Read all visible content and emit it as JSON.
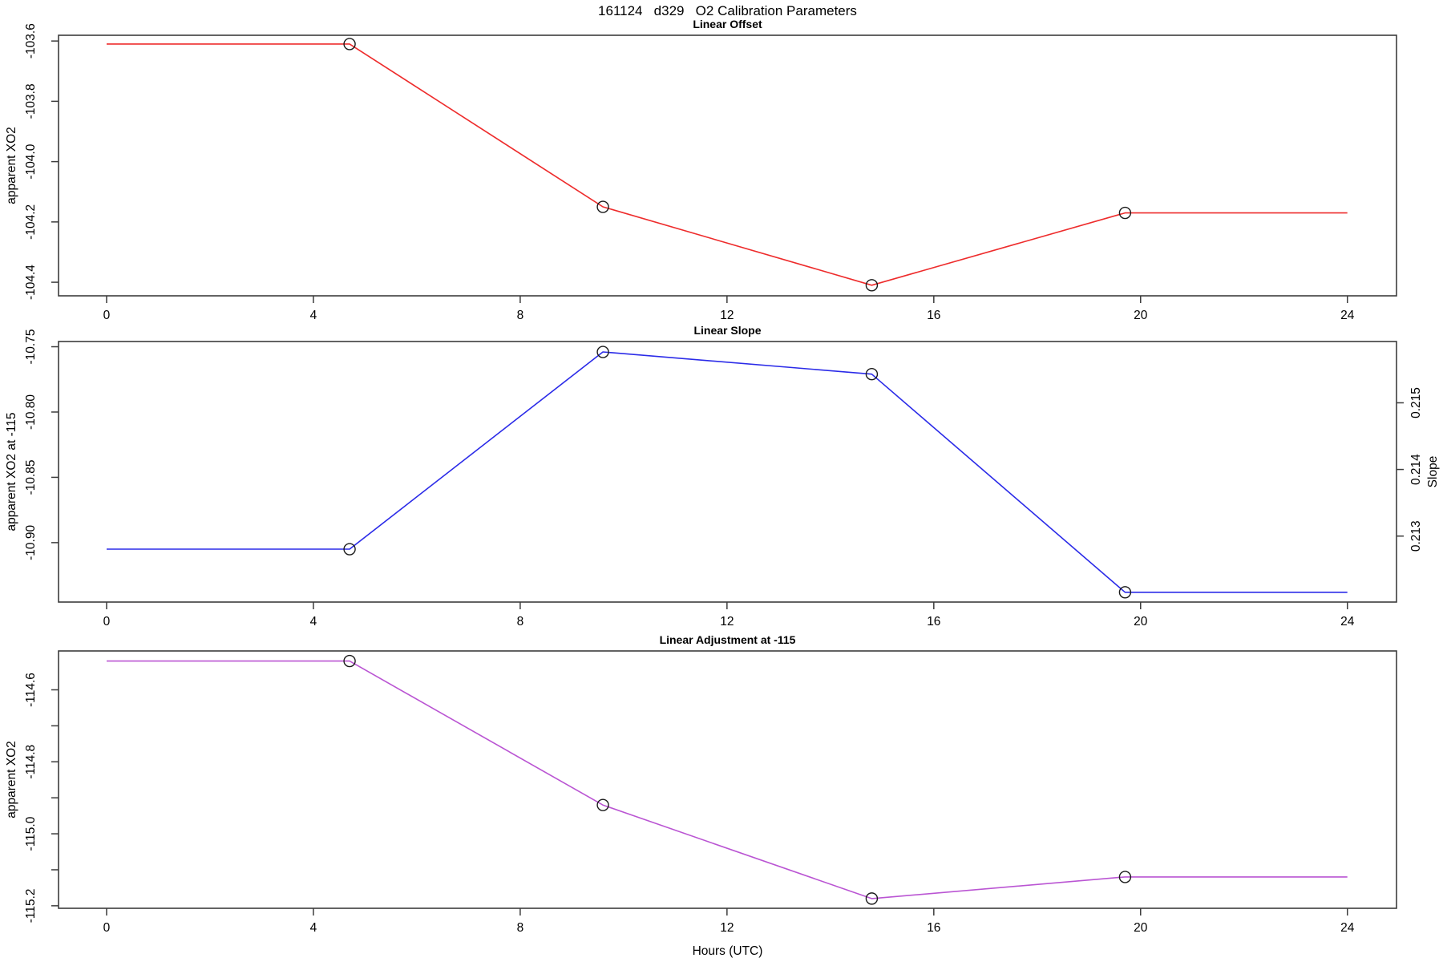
{
  "figure": {
    "main_title": "161124   d329   O2 Calibration Parameters"
  },
  "chart_data": {
    "type": "line",
    "main_title": "161124   d329   O2 Calibration Parameters",
    "xlabel": "Hours (UTC)",
    "xticks": [
      0,
      4,
      8,
      12,
      16,
      20,
      24
    ],
    "xtick_labels": [
      "0",
      "4",
      "8",
      "12",
      "16",
      "20",
      "24"
    ],
    "xlim": [
      -0.93,
      24.95
    ],
    "axis_color": "#3c3c3c",
    "marker_color": "#1a1a1a",
    "grid": false,
    "panels": [
      {
        "title": "Linear Offset",
        "ylabel": "apparent XO2",
        "series_name": "linear-offset",
        "color": "#ee2c2c",
        "x": [
          0,
          4.7,
          9.6,
          14.8,
          19.7,
          24
        ],
        "y": [
          -103.61,
          -103.61,
          -104.15,
          -104.41,
          -104.17,
          -104.17
        ],
        "marker_indices": [
          1,
          2,
          3,
          4
        ],
        "yticks": [
          {
            "v": -103.6,
            "label": "-103.6"
          },
          {
            "v": -103.8,
            "label": "-103.8"
          },
          {
            "v": -104.0,
            "label": "-104.0"
          },
          {
            "v": -104.2,
            "label": "-104.2"
          },
          {
            "v": -104.4,
            "label": "-104.4"
          }
        ],
        "ylim": [
          -103.581,
          -104.445
        ]
      },
      {
        "title": "Linear Slope",
        "ylabel": "apparent XO2 at -115",
        "series_name": "linear-slope",
        "color": "#2b2be8",
        "x": [
          0,
          4.7,
          9.6,
          14.8,
          19.7,
          24
        ],
        "y": [
          -10.905,
          -10.905,
          -10.754,
          -10.771,
          -10.938,
          -10.938
        ],
        "slope_values_right_axis": [
          0.2128,
          0.2128,
          0.2158,
          0.2154,
          0.2121,
          0.2121
        ],
        "marker_indices": [
          1,
          2,
          3,
          4
        ],
        "yticks": [
          {
            "v": -10.75,
            "label": "-10.75"
          },
          {
            "v": -10.8,
            "label": "-10.80"
          },
          {
            "v": -10.85,
            "label": "-10.85"
          },
          {
            "v": -10.9,
            "label": "-10.90"
          }
        ],
        "ylim": [
          -10.746,
          -10.9455
        ],
        "right_axis": {
          "label": "Slope",
          "yticks": [
            {
              "v": 0.215,
              "label": "0.215"
            },
            {
              "v": 0.214,
              "label": "0.214"
            },
            {
              "v": 0.213,
              "label": "0.213"
            }
          ],
          "ylim": [
            0.21592,
            0.21201
          ]
        }
      },
      {
        "title": "Linear Adjustment at -115",
        "ylabel": "apparent XO2",
        "series_name": "linear-adjustment",
        "color": "#ba55d3",
        "x": [
          0,
          4.7,
          9.6,
          14.8,
          19.7,
          24
        ],
        "y": [
          -114.52,
          -114.52,
          -114.92,
          -115.18,
          -115.12,
          -115.12
        ],
        "marker_indices": [
          1,
          2,
          3,
          4
        ],
        "yticks": [
          {
            "v": -114.6,
            "label": "-114.6"
          },
          {
            "v": -114.7,
            "label": ""
          },
          {
            "v": -114.8,
            "label": "-114.8"
          },
          {
            "v": -114.9,
            "label": ""
          },
          {
            "v": -115.0,
            "label": "-115.0"
          },
          {
            "v": -115.1,
            "label": ""
          },
          {
            "v": -115.2,
            "label": "-115.2"
          }
        ],
        "ylim": [
          -114.492,
          -115.207
        ],
        "show_xlabel": true
      }
    ]
  }
}
